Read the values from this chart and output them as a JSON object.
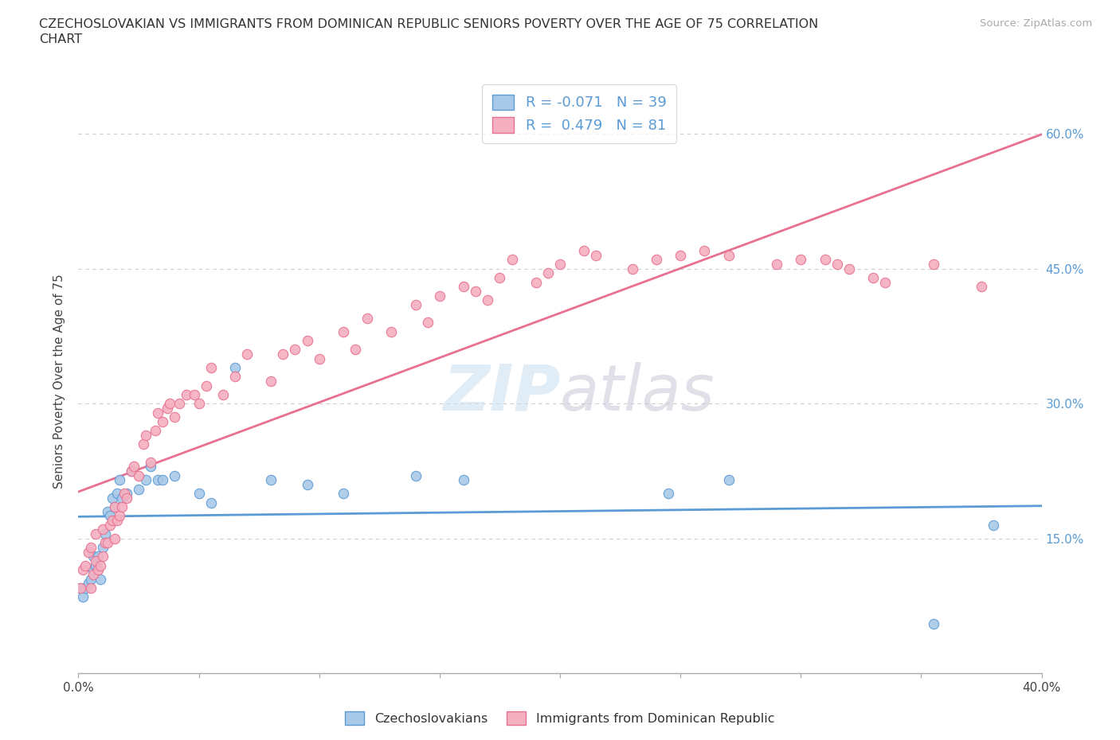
{
  "title_line1": "CZECHOSLOVAKIAN VS IMMIGRANTS FROM DOMINICAN REPUBLIC SENIORS POVERTY OVER THE AGE OF 75 CORRELATION",
  "title_line2": "CHART",
  "source": "Source: ZipAtlas.com",
  "ylabel": "Seniors Poverty Over the Age of 75",
  "r_czech": -0.071,
  "n_czech": 39,
  "r_dom": 0.479,
  "n_dom": 81,
  "czech_fill": "#a8c8e8",
  "czech_edge": "#5b9bd5",
  "dom_fill": "#f4b0c0",
  "dom_edge": "#e87090",
  "czech_line": "#5b9bd5",
  "dom_line": "#e87090",
  "xlim": [
    0.0,
    0.4
  ],
  "ylim": [
    0.0,
    0.65
  ],
  "x_ticks": [
    0.0,
    0.05,
    0.1,
    0.15,
    0.2,
    0.25,
    0.3,
    0.35,
    0.4
  ],
  "y_ticks": [
    0.15,
    0.3,
    0.45,
    0.6
  ],
  "czech_x": [
    0.001,
    0.002,
    0.003,
    0.004,
    0.005,
    0.006,
    0.006,
    0.007,
    0.008,
    0.009,
    0.01,
    0.011,
    0.012,
    0.013,
    0.014,
    0.015,
    0.016,
    0.017,
    0.018,
    0.02,
    0.022,
    0.025,
    0.028,
    0.03,
    0.033,
    0.035,
    0.04,
    0.05,
    0.055,
    0.065,
    0.08,
    0.095,
    0.11,
    0.14,
    0.16,
    0.245,
    0.27,
    0.355,
    0.38
  ],
  "czech_y": [
    0.095,
    0.085,
    0.095,
    0.1,
    0.105,
    0.115,
    0.13,
    0.12,
    0.13,
    0.105,
    0.14,
    0.155,
    0.18,
    0.175,
    0.195,
    0.185,
    0.2,
    0.215,
    0.195,
    0.2,
    0.225,
    0.205,
    0.215,
    0.23,
    0.215,
    0.215,
    0.22,
    0.2,
    0.19,
    0.34,
    0.215,
    0.21,
    0.2,
    0.22,
    0.215,
    0.2,
    0.215,
    0.055,
    0.165
  ],
  "dom_x": [
    0.001,
    0.002,
    0.003,
    0.004,
    0.005,
    0.005,
    0.006,
    0.007,
    0.007,
    0.008,
    0.009,
    0.01,
    0.01,
    0.011,
    0.012,
    0.013,
    0.014,
    0.015,
    0.015,
    0.016,
    0.017,
    0.018,
    0.019,
    0.02,
    0.022,
    0.023,
    0.025,
    0.027,
    0.028,
    0.03,
    0.032,
    0.033,
    0.035,
    0.037,
    0.038,
    0.04,
    0.042,
    0.045,
    0.048,
    0.05,
    0.053,
    0.055,
    0.06,
    0.065,
    0.07,
    0.08,
    0.085,
    0.09,
    0.095,
    0.1,
    0.11,
    0.115,
    0.12,
    0.13,
    0.14,
    0.145,
    0.15,
    0.16,
    0.165,
    0.17,
    0.175,
    0.18,
    0.19,
    0.195,
    0.2,
    0.21,
    0.215,
    0.23,
    0.24,
    0.25,
    0.26,
    0.27,
    0.29,
    0.3,
    0.31,
    0.315,
    0.32,
    0.33,
    0.335,
    0.355,
    0.375
  ],
  "dom_y": [
    0.095,
    0.115,
    0.12,
    0.135,
    0.14,
    0.095,
    0.11,
    0.125,
    0.155,
    0.115,
    0.12,
    0.13,
    0.16,
    0.145,
    0.145,
    0.165,
    0.17,
    0.15,
    0.185,
    0.17,
    0.175,
    0.185,
    0.2,
    0.195,
    0.225,
    0.23,
    0.22,
    0.255,
    0.265,
    0.235,
    0.27,
    0.29,
    0.28,
    0.295,
    0.3,
    0.285,
    0.3,
    0.31,
    0.31,
    0.3,
    0.32,
    0.34,
    0.31,
    0.33,
    0.355,
    0.325,
    0.355,
    0.36,
    0.37,
    0.35,
    0.38,
    0.36,
    0.395,
    0.38,
    0.41,
    0.39,
    0.42,
    0.43,
    0.425,
    0.415,
    0.44,
    0.46,
    0.435,
    0.445,
    0.455,
    0.47,
    0.465,
    0.45,
    0.46,
    0.465,
    0.47,
    0.465,
    0.455,
    0.46,
    0.46,
    0.455,
    0.45,
    0.44,
    0.435,
    0.455,
    0.43
  ]
}
